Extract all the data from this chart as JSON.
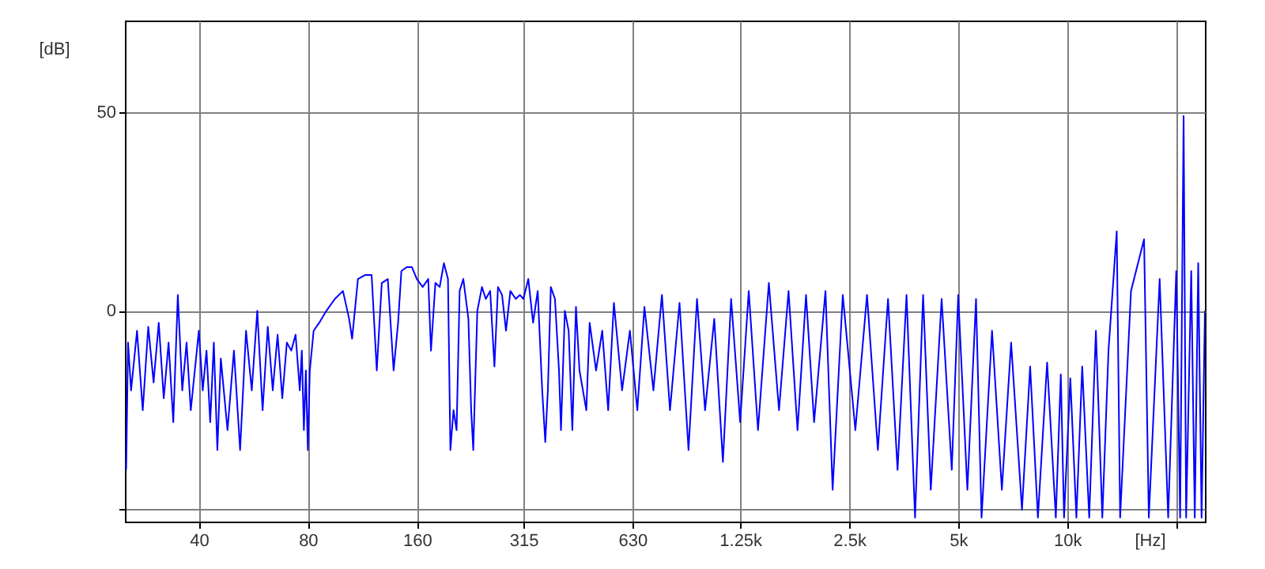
{
  "chart_data": {
    "type": "line",
    "xlabel": "[Hz]",
    "ylabel": "[dB]",
    "log": "x",
    "grid": true,
    "marker": "none",
    "line_style": "solid",
    "xlim": [
      25,
      24000
    ],
    "xticks": [
      40,
      80,
      160,
      315,
      630,
      {
        "value": 1250,
        "label": "1.25k"
      },
      {
        "value": 2500,
        "label": "2.5k"
      },
      {
        "value": 5000,
        "label": "5k"
      },
      {
        "value": 10000,
        "label": "10k"
      },
      {
        "value": 20000,
        "label": null
      }
    ],
    "ylim": [
      -53,
      73
    ],
    "yticks": [
      {
        "value": -50,
        "label": null
      },
      0,
      50
    ],
    "x": [
      25.2,
      25.5,
      26,
      27,
      28,
      29,
      30,
      31,
      32,
      33,
      34,
      35,
      36,
      37,
      38,
      40,
      41,
      42,
      43,
      44,
      45,
      46,
      48,
      50,
      52,
      54,
      56,
      58,
      60,
      62,
      64,
      66,
      68,
      70,
      72,
      74,
      76,
      77,
      78,
      79,
      80,
      81,
      83,
      86,
      90,
      95,
      100,
      104,
      106,
      110,
      115,
      120,
      124,
      128,
      133,
      138,
      142,
      145,
      150,
      155,
      160,
      166,
      172,
      175,
      180,
      185,
      190,
      195,
      198,
      202,
      206,
      210,
      215,
      222,
      226,
      229,
      235,
      242,
      248,
      255,
      262,
      268,
      275,
      282,
      290,
      300,
      308,
      315,
      325,
      335,
      345,
      355,
      362,
      368,
      375,
      385,
      395,
      400,
      410,
      420,
      430,
      440,
      450,
      470,
      480,
      500,
      520,
      540,
      560,
      590,
      620,
      650,
      680,
      720,
      760,
      800,
      850,
      900,
      950,
      1000,
      1060,
      1120,
      1180,
      1250,
      1320,
      1400,
      1500,
      1600,
      1700,
      1800,
      1900,
      2000,
      2150,
      2250,
      2400,
      2600,
      2800,
      3000,
      3200,
      3400,
      3600,
      3800,
      4000,
      4200,
      4500,
      4800,
      5000,
      5300,
      5600,
      5800,
      6200,
      6600,
      7000,
      7500,
      7900,
      8300,
      8800,
      9300,
      9600,
      9800,
      10200,
      10600,
      11000,
      11500,
      12000,
      12500,
      13000,
      13700,
      14000,
      15000,
      16300,
      16800,
      18000,
      19000,
      20000,
      20500,
      20960,
      21300,
      22000,
      22500,
      23000,
      23500,
      24000
    ],
    "series": [
      {
        "color": "#0000ff",
        "values": [
          -40,
          -8,
          -20,
          -5,
          -25,
          -4,
          -18,
          -3,
          -22,
          -8,
          -28,
          4,
          -20,
          -8,
          -25,
          -5,
          -20,
          -10,
          -28,
          -8,
          -35,
          -12,
          -30,
          -10,
          -35,
          -5,
          -20,
          0,
          -25,
          -4,
          -20,
          -6,
          -22,
          -8,
          -10,
          -6,
          -20,
          -10,
          -30,
          -15,
          -35,
          -15,
          -5,
          -3,
          0,
          3,
          5,
          -2,
          -7,
          8,
          9,
          9,
          -15,
          7,
          8,
          -15,
          -3,
          10,
          11,
          11,
          8,
          6,
          8,
          -10,
          7,
          6,
          12,
          8,
          -35,
          -25,
          -30,
          5,
          8,
          -2,
          -25,
          -35,
          0,
          6,
          3,
          5,
          -14,
          6,
          4,
          -5,
          5,
          3,
          4,
          3,
          8,
          -3,
          5,
          -20,
          -33,
          -20,
          6,
          3,
          -15,
          -30,
          0,
          -5,
          -30,
          1,
          -15,
          -25,
          -3,
          -15,
          -5,
          -25,
          2,
          -20,
          -5,
          -25,
          1,
          -20,
          4,
          -25,
          2,
          -35,
          3,
          -25,
          -2,
          -38,
          3,
          -28,
          5,
          -30,
          7,
          -25,
          5,
          -30,
          4,
          -28,
          5,
          -45,
          4,
          -30,
          4,
          -35,
          3,
          -40,
          4,
          -52,
          4,
          -45,
          3,
          -40,
          4,
          -45,
          3,
          -52,
          -5,
          -45,
          -8,
          -50,
          -14,
          -52,
          -13,
          -52,
          -16,
          -52,
          -17,
          -52,
          -14,
          -52,
          -5,
          -52,
          -10,
          20,
          -52,
          5,
          18,
          -52,
          8,
          -52,
          10,
          -52,
          49,
          -52,
          10,
          -52,
          12,
          -52,
          0
        ]
      }
    ]
  }
}
